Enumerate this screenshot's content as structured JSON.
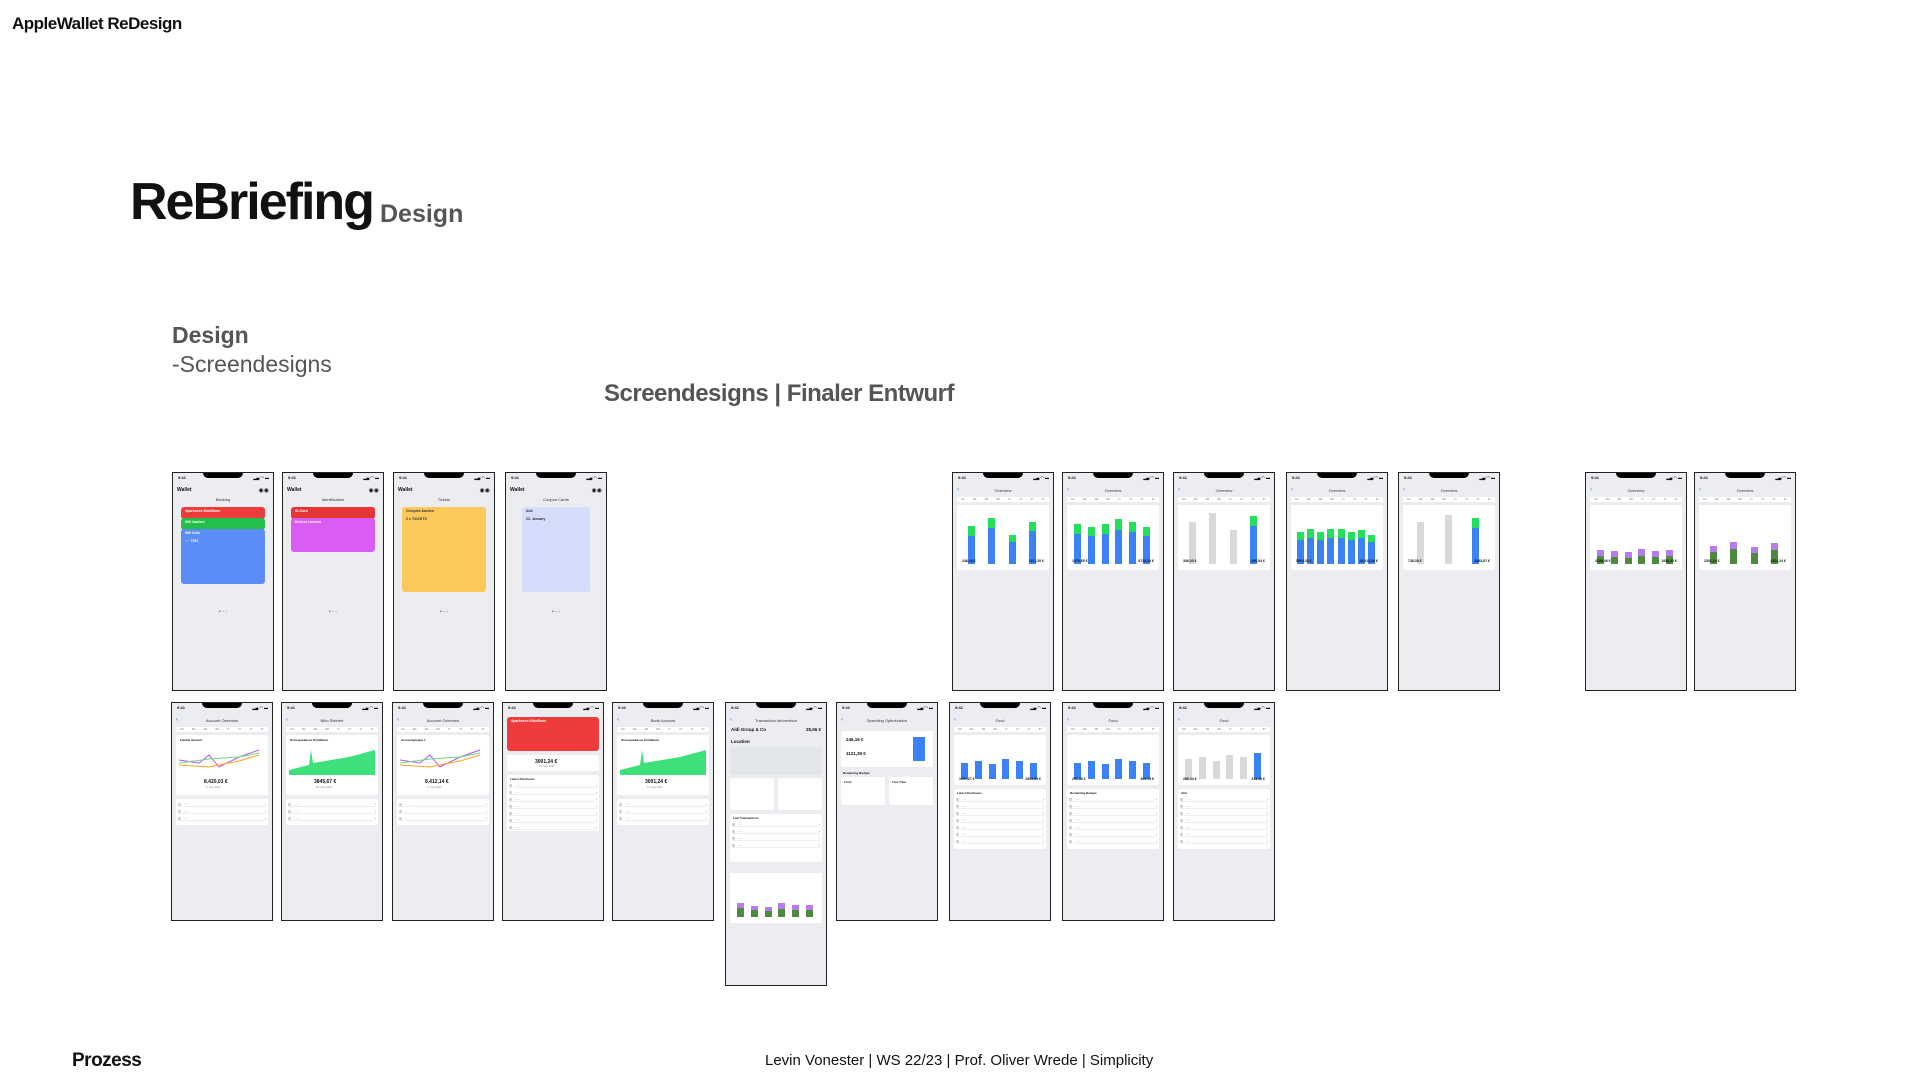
{
  "header": {
    "app_title": "AppleWallet ReDesign",
    "main_title": "ReBriefing",
    "main_subtitle": "Design",
    "section_title": "Design",
    "section_subtitle": "-Screendesigns",
    "board_title": "Screendesigns | Finaler Entwurf"
  },
  "footer": {
    "left": "Prozess",
    "right": "Levin Vonester | WS 22/23 | Prof. Oliver Wrede | Simplicity"
  },
  "status_time": "9:41",
  "segments": [
    "1M",
    "2M",
    "3M",
    "6M",
    "1Y",
    "2Y",
    "3Y",
    "5Y"
  ],
  "colors": {
    "blue": "#3b82f6",
    "green": "#22e05a",
    "red": "#ee3b3b",
    "magenta": "#d95cf5",
    "yellow": "#fdc85a",
    "coupon": "#d6ddfb",
    "purple": "#b57cf0",
    "darkgreen": "#4e8a3e",
    "grey": "#d9d9d9"
  },
  "top_wallet": [
    {
      "title": "Wallet",
      "category": "Banking",
      "cards": [
        {
          "label": "Sparkasse KölnBonn",
          "color": "#ee3b3b"
        },
        {
          "label": "ING Aachen",
          "color": "#22c04a"
        },
        {
          "label": "ING Köln",
          "color": "#5b8cf8",
          "number": "···· 7091"
        }
      ]
    },
    {
      "title": "Wallet",
      "category": "Identification",
      "cards": [
        {
          "label": "ID-Card",
          "color": "#e53535"
        },
        {
          "label": "Drivers License",
          "color": "#d95cf5"
        }
      ]
    },
    {
      "title": "Wallet",
      "category": "Tickets",
      "cards": [
        {
          "label": "Cineplex Aachen",
          "color": "#fdc85a",
          "number": "2 x TICKETS"
        }
      ]
    },
    {
      "title": "Wallet",
      "category": "Coupon Cards",
      "cards": [
        {
          "label": "Aldi",
          "color": "#d6ddfb",
          "number": "23. January"
        }
      ]
    }
  ],
  "overview": [
    {
      "title": "Overview",
      "bars": [
        [
          28,
          10
        ],
        [
          36,
          10
        ],
        [
          22,
          7
        ],
        [
          33,
          9
        ]
      ],
      "earned": "246,16 €",
      "spent": "1121,39 €"
    },
    {
      "title": "Overview",
      "bars": [
        [
          30,
          10
        ],
        [
          28,
          9
        ],
        [
          30,
          10
        ],
        [
          34,
          11
        ],
        [
          32,
          10
        ],
        [
          28,
          9
        ]
      ],
      "earned": "1476,65 €",
      "spent": "6728,34 €"
    },
    {
      "title": "Overview",
      "bars": [
        [
          32,
          10
        ],
        [
          40,
          11
        ],
        [
          26,
          8
        ],
        [
          38,
          10
        ]
      ],
      "earned": "306,03 €",
      "spent": "956,54 €"
    },
    {
      "title": "Overview",
      "bars": [
        [
          24,
          8
        ],
        [
          26,
          9
        ],
        [
          24,
          8
        ],
        [
          26,
          9
        ],
        [
          26,
          9
        ],
        [
          24,
          8
        ],
        [
          26,
          8
        ],
        [
          22,
          7
        ]
      ],
      "earned": "5904,32 €",
      "spent": "26.913,36 €"
    },
    {
      "title": "Overview",
      "bars": [
        [
          32,
          10
        ],
        [
          38,
          11
        ],
        [
          36,
          10
        ]
      ],
      "earned": "738,38 €",
      "spent": "3363,87 €"
    },
    {
      "title": "Overview",
      "bars": [
        [
          8,
          6
        ],
        [
          7,
          6
        ],
        [
          6,
          6
        ],
        [
          8,
          7
        ],
        [
          7,
          6
        ],
        [
          8,
          6
        ]
      ],
      "earned": "3336,46 €",
      "spent": "1656,42 €",
      "purple": true
    },
    {
      "title": "Overview",
      "bars": [
        [
          12,
          6
        ],
        [
          15,
          7
        ],
        [
          11,
          6
        ],
        [
          14,
          7
        ]
      ],
      "earned": "2301,24 €",
      "spent": "2301,24 €",
      "purple": true
    }
  ],
  "bottom": [
    {
      "kind": "account",
      "title": "Account Overview",
      "name": "Familie Steinert",
      "balance": "8.420,03 €",
      "date": "5. June 2022"
    },
    {
      "kind": "area",
      "title": "Niko Steinert",
      "name": "Kreissparkasse Köln/Bonn",
      "balance": "3845,67 €",
      "date": "28. June 2022"
    },
    {
      "kind": "account",
      "title": "Account Overview",
      "name": "Accountgruppe 1",
      "balance": "8.412,14 €",
      "date": "5. June 2022"
    },
    {
      "kind": "bank",
      "title": "Bank Account",
      "name": "Sparkasse KölnBonn",
      "balance": "3001,24 €",
      "date": "24. Sep. 2022",
      "list_title": "Latest Purchases"
    },
    {
      "kind": "area",
      "title": "Bank Account",
      "name": "Kreissparkasse Köln/Bonn",
      "balance": "3001,24 €",
      "date": "16. Aug. 2022"
    },
    {
      "kind": "transaction",
      "title": "Transaction Information",
      "name": "Aldi Group & Co",
      "balance": "25,56 €",
      "location": "Location",
      "list_title": "Last Transactions",
      "category_title": "Spendings in Category"
    },
    {
      "kind": "optimization",
      "title": "Spending Optimization",
      "name": "Remaining Budget",
      "balance": "246,16 €",
      "date": "1121,39 €",
      "left_box": "Food",
      "right_box": "Free Time"
    },
    {
      "kind": "food",
      "title": "Food",
      "name": "Latest Purchases",
      "balance": "1002,27 €",
      "date": "2603,84 €"
    },
    {
      "kind": "food",
      "title": "Food",
      "name": "Remaining Budget",
      "balance": "292,46 €",
      "date": "309,14 €"
    },
    {
      "kind": "food",
      "title": "Food",
      "name": "Aldi",
      "balance": "288,34 €",
      "date": "314,46 €",
      "grey": true
    }
  ]
}
